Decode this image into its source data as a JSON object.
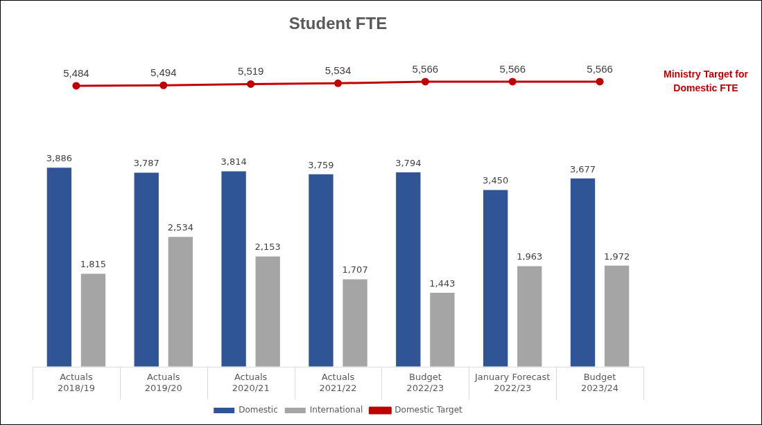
{
  "chart_data": {
    "type": "bar",
    "title": "Student FTE",
    "categories": [
      "Actuals\n2018/19",
      "Actuals\n2019/20",
      "Actuals\n2020/21",
      "Actuals\n2021/22",
      "Budget\n2022/23",
      "January Forecast\n2022/23",
      "Budget\n2023/24"
    ],
    "series": [
      {
        "name": "Domestic",
        "color": "#2f5597",
        "values": [
          3886,
          3787,
          3814,
          3759,
          3794,
          3450,
          3677
        ],
        "value_labels": [
          "3,886",
          "3,787",
          "3,814",
          "3,759",
          "3,794",
          "3,450",
          "3,677"
        ]
      },
      {
        "name": "International",
        "color": "#a5a5a5",
        "values": [
          1815,
          2534,
          2153,
          1707,
          1443,
          1963,
          1972
        ],
        "value_labels": [
          "1,815",
          "2,534",
          "2,153",
          "1,707",
          "1,443",
          "1,963",
          "1,972"
        ]
      },
      {
        "name": "Domestic Target",
        "type": "line",
        "color": "#c00000",
        "marker": "circle",
        "values": [
          5484,
          5494,
          5519,
          5534,
          5566,
          5566,
          5566
        ],
        "value_labels": [
          "5,484",
          "5,494",
          "5,519",
          "5,534",
          "5,566",
          "5,566",
          "5,566"
        ]
      }
    ],
    "annotations": [
      "Ministry Target for\nDomestic FTE"
    ],
    "grid": false,
    "legend": "bottom"
  }
}
